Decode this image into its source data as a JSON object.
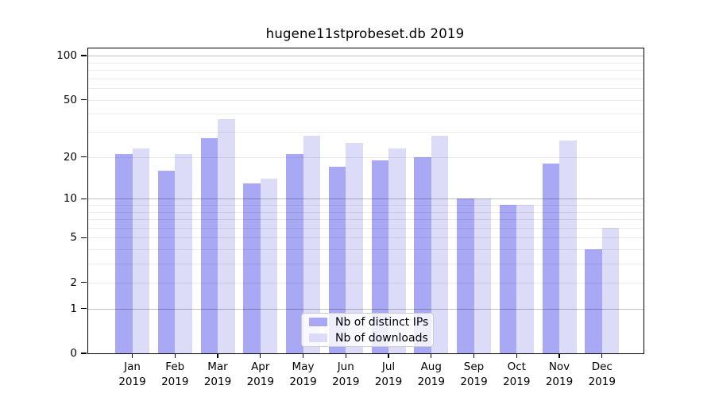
{
  "title": "hugene11stprobeset.db 2019",
  "colors": {
    "series_distinct_ips": "#a8a8f4",
    "series_downloads": "#dcdcf8",
    "axis": "#000000",
    "background": "#ffffff"
  },
  "chart_data": {
    "type": "bar",
    "title": "hugene11stprobeset.db 2019",
    "categories": [
      {
        "month": "Jan",
        "year": "2019"
      },
      {
        "month": "Feb",
        "year": "2019"
      },
      {
        "month": "Mar",
        "year": "2019"
      },
      {
        "month": "Apr",
        "year": "2019"
      },
      {
        "month": "May",
        "year": "2019"
      },
      {
        "month": "Jun",
        "year": "2019"
      },
      {
        "month": "Jul",
        "year": "2019"
      },
      {
        "month": "Aug",
        "year": "2019"
      },
      {
        "month": "Sep",
        "year": "2019"
      },
      {
        "month": "Oct",
        "year": "2019"
      },
      {
        "month": "Nov",
        "year": "2019"
      },
      {
        "month": "Dec",
        "year": "2019"
      }
    ],
    "series": [
      {
        "name": "Nb of distinct IPs",
        "key": "distinct-ips",
        "color": "#a8a8f4",
        "values": [
          21,
          16,
          27,
          13,
          21,
          17,
          19,
          20,
          10,
          9,
          18,
          4
        ]
      },
      {
        "name": "Nb of downloads",
        "key": "downloads",
        "color": "#dcdcf8",
        "values": [
          23,
          21,
          37,
          14,
          28,
          25,
          23,
          28,
          10,
          9,
          26,
          6
        ]
      }
    ],
    "y_axis": {
      "scale": "log1p",
      "ticks": [
        0,
        1,
        2,
        5,
        10,
        20,
        50,
        100
      ],
      "minor_gridlines": [
        2,
        3,
        4,
        5,
        6,
        7,
        8,
        9,
        20,
        30,
        40,
        50,
        60,
        70,
        80,
        90
      ],
      "major_gridlines": [
        1,
        10,
        100
      ],
      "top_value": 112
    },
    "xlabel": "",
    "ylabel": "",
    "grid": true,
    "legend": {
      "position": "bottom-center",
      "entries": [
        "Nb of distinct IPs",
        "Nb of downloads"
      ]
    }
  }
}
